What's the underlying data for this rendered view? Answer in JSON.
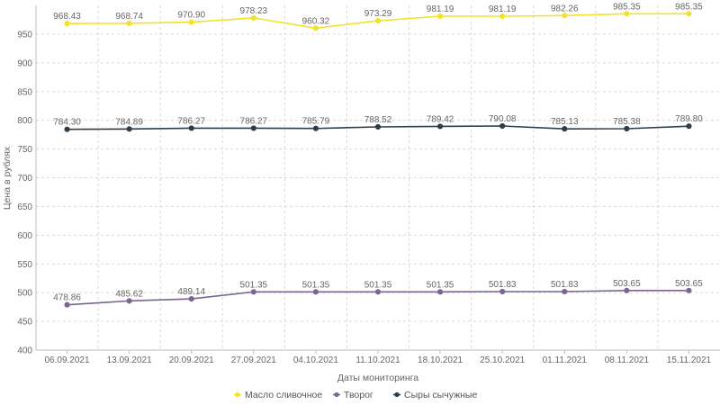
{
  "chart_data": {
    "type": "line",
    "title": "",
    "xlabel": "Даты мониторинга",
    "ylabel": "Цена в рублях",
    "ylim": [
      400,
      1000
    ],
    "yticks": [
      400,
      450,
      500,
      550,
      600,
      650,
      700,
      750,
      800,
      850,
      900,
      950
    ],
    "grid": true,
    "legend_position": "bottom",
    "categories": [
      "06.09.2021",
      "13.09.2021",
      "20.09.2021",
      "27.09.2021",
      "04.10.2021",
      "11.10.2021",
      "18.10.2021",
      "25.10.2021",
      "01.11.2021",
      "08.11.2021",
      "15.11.2021"
    ],
    "series": [
      {
        "name": "Масло сливочное",
        "color": "#f2e22b",
        "values": [
          968.43,
          968.74,
          970.9,
          978.23,
          960.32,
          973.29,
          981.19,
          981.19,
          982.26,
          985.35,
          985.35
        ],
        "labels": [
          "968.43",
          "968.74",
          "970.90",
          "978.23",
          "960.32",
          "973.29",
          "981.19",
          "981.19",
          "982.26",
          "985.35",
          "985.35"
        ]
      },
      {
        "name": "Творог",
        "color": "#7b6691",
        "values": [
          478.86,
          485.62,
          489.14,
          501.35,
          501.35,
          501.35,
          501.35,
          501.83,
          501.83,
          503.65,
          503.65
        ],
        "labels": [
          "478.86",
          "485.62",
          "489.14",
          "501.35",
          "501.35",
          "501.35",
          "501.35",
          "501.83",
          "501.83",
          "503.65",
          "503.65"
        ]
      },
      {
        "name": "Сыры сычужные",
        "color": "#2c3e4c",
        "values": [
          784.3,
          784.89,
          786.27,
          786.27,
          785.79,
          788.52,
          789.42,
          790.08,
          785.13,
          785.38,
          789.8
        ],
        "labels": [
          "784.30",
          "784.89",
          "786.27",
          "786.27",
          "785.79",
          "788.52",
          "789.42",
          "790.08",
          "785.13",
          "785.38",
          "789.80"
        ]
      }
    ]
  }
}
